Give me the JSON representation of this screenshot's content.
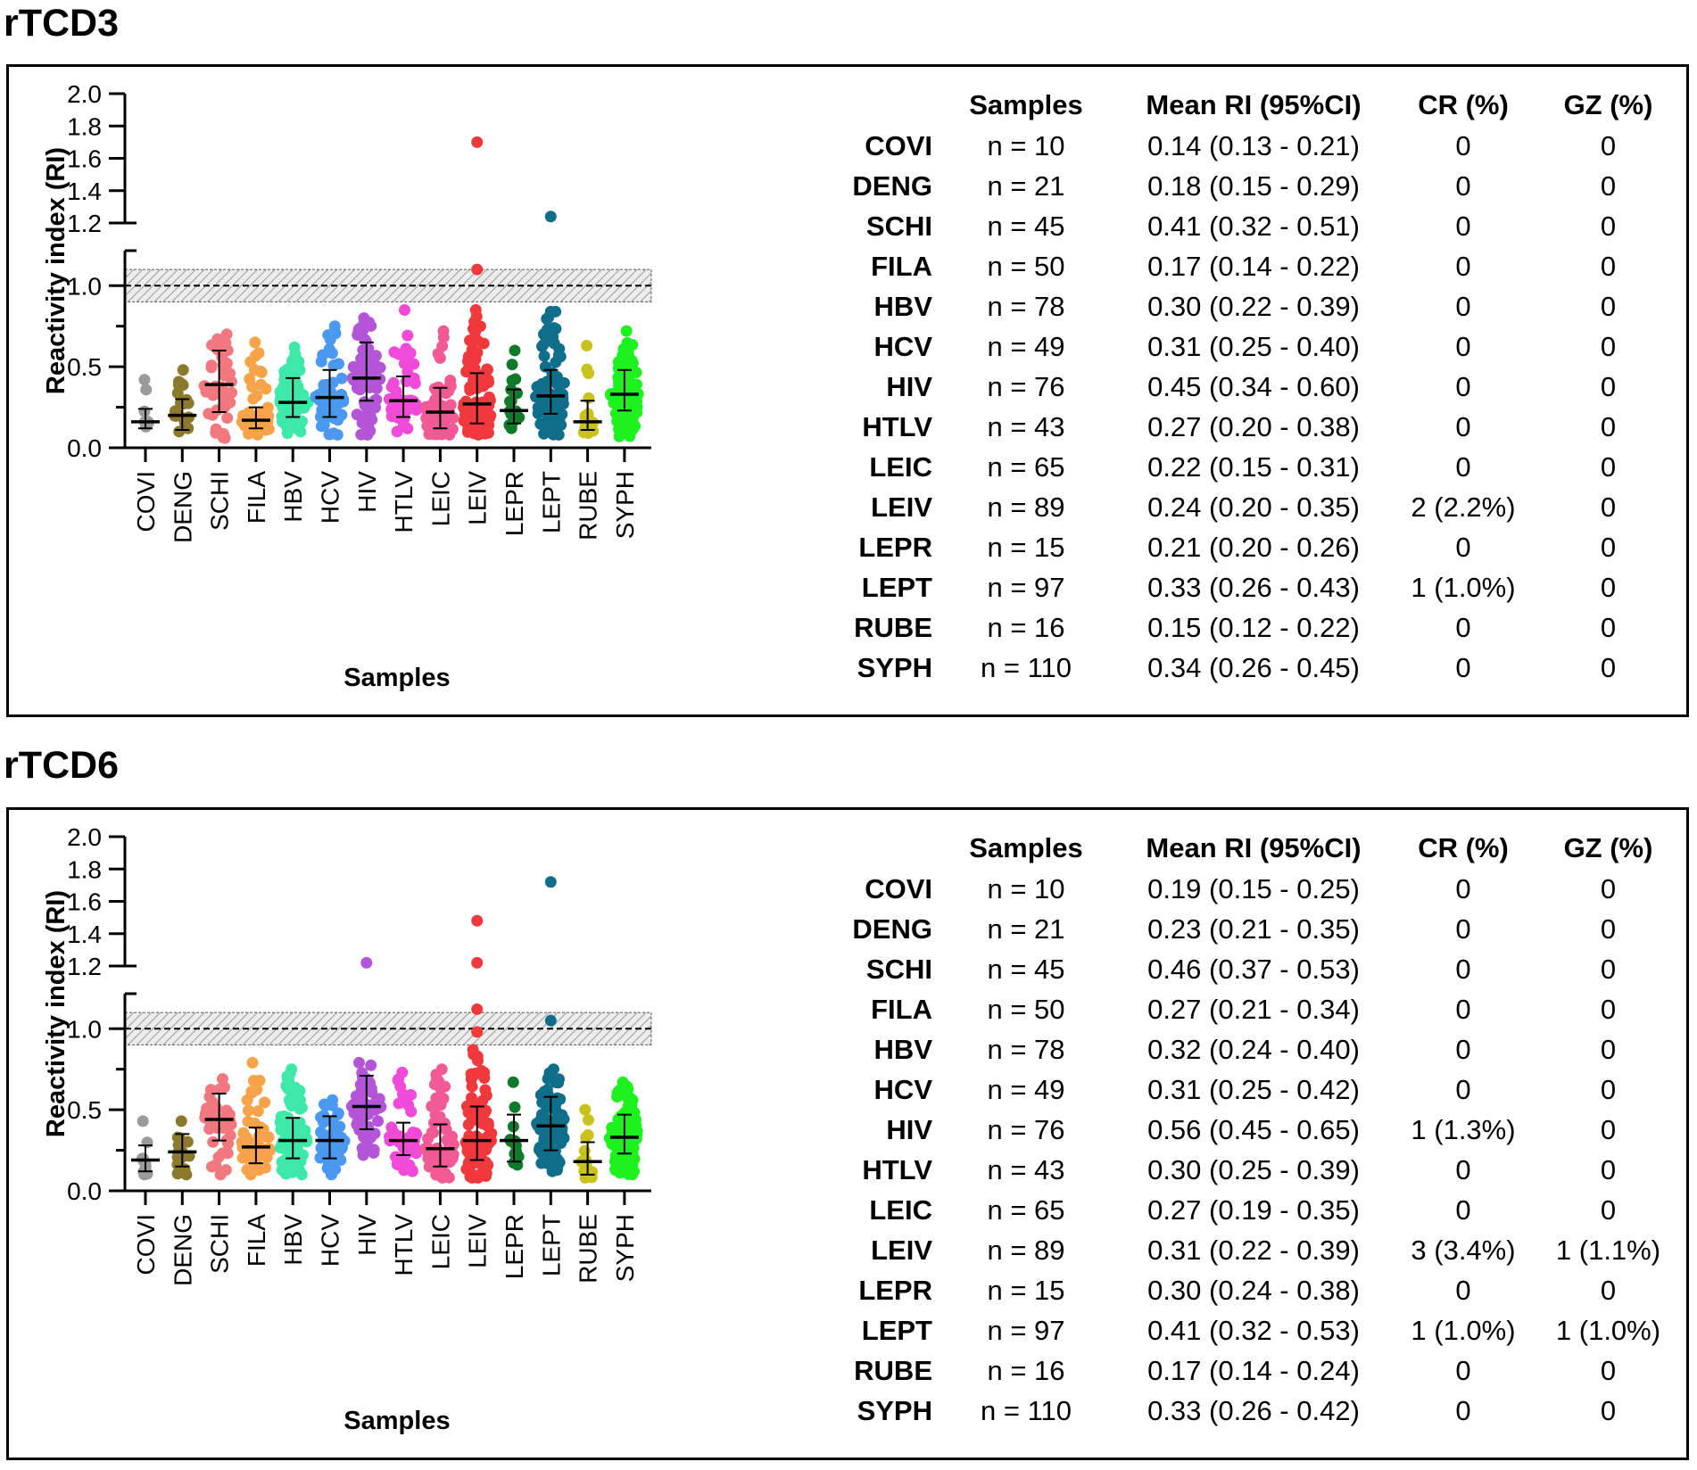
{
  "colors": [
    "#9a9a9a",
    "#8b7a2c",
    "#f2787f",
    "#f7a34a",
    "#3ee8a8",
    "#4a98f0",
    "#b455d8",
    "#f04ad8",
    "#f25a96",
    "#f0393d",
    "#0f7a2a",
    "#0f6f8a",
    "#c9c21c",
    "#1ef21e"
  ],
  "chart_data": [
    {
      "panel_title": "rTCD3",
      "type": "scatter",
      "ylabel": "Reactivity index (RI)",
      "xlabel": "Samples",
      "ylim_lower": [
        0,
        1.15
      ],
      "ylim_upper": [
        1.2,
        2.0
      ],
      "yticks_lower": [
        "0.0",
        "0.5",
        "1.0"
      ],
      "yticks_upper": [
        "1.2",
        "1.4",
        "1.6",
        "1.8",
        "2.0"
      ],
      "cutoff": 1.0,
      "grey_zone": [
        0.9,
        1.1
      ],
      "categories": [
        "COVI",
        "DENG",
        "SCHI",
        "FILA",
        "HBV",
        "HCV",
        "HIV",
        "HTLV",
        "LEIC",
        "LEIV",
        "LEPR",
        "LEPT",
        "RUBE",
        "SYPH"
      ],
      "n": [
        10,
        21,
        45,
        50,
        78,
        49,
        76,
        43,
        65,
        89,
        15,
        97,
        16,
        110
      ],
      "median": [
        0.16,
        0.2,
        0.39,
        0.17,
        0.28,
        0.31,
        0.43,
        0.29,
        0.22,
        0.27,
        0.23,
        0.32,
        0.16,
        0.33
      ],
      "whisker_low": [
        0.12,
        0.11,
        0.22,
        0.12,
        0.19,
        0.19,
        0.29,
        0.19,
        0.12,
        0.15,
        0.15,
        0.21,
        0.11,
        0.23
      ],
      "whisker_high": [
        0.24,
        0.3,
        0.6,
        0.25,
        0.43,
        0.48,
        0.65,
        0.44,
        0.37,
        0.46,
        0.36,
        0.48,
        0.29,
        0.48
      ],
      "min": [
        0.13,
        0.1,
        0.06,
        0.08,
        0.09,
        0.08,
        0.08,
        0.1,
        0.08,
        0.08,
        0.12,
        0.08,
        0.09,
        0.07
      ],
      "max": [
        0.42,
        0.48,
        0.7,
        0.65,
        0.62,
        0.75,
        0.8,
        0.85,
        0.72,
        0.85,
        0.6,
        0.84,
        0.63,
        0.72
      ],
      "outliers": [
        [],
        [],
        [],
        [],
        [],
        [],
        [],
        [],
        [],
        [
          1.1,
          1.7
        ],
        [],
        [
          0.84,
          1.24
        ],
        [],
        []
      ],
      "table": {
        "headers": [
          "",
          "Samples",
          "Mean RI (95%CI)",
          "CR (%)",
          "GZ (%)"
        ],
        "rows": [
          [
            "COVI",
            "n = 10",
            "0.14 (0.13 - 0.21)",
            "0",
            "0"
          ],
          [
            "DENG",
            "n = 21",
            "0.18 (0.15 - 0.29)",
            "0",
            "0"
          ],
          [
            "SCHI",
            "n = 45",
            "0.41 (0.32 - 0.51)",
            "0",
            "0"
          ],
          [
            "FILA",
            "n = 50",
            "0.17 (0.14 - 0.22)",
            "0",
            "0"
          ],
          [
            "HBV",
            "n = 78",
            "0.30 (0.22 - 0.39)",
            "0",
            "0"
          ],
          [
            "HCV",
            "n = 49",
            "0.31 (0.25 - 0.40)",
            "0",
            "0"
          ],
          [
            "HIV",
            "n = 76",
            "0.45 (0.34 - 0.60)",
            "0",
            "0"
          ],
          [
            "HTLV",
            "n = 43",
            "0.27 (0.20 - 0.38)",
            "0",
            "0"
          ],
          [
            "LEIC",
            "n = 65",
            "0.22 (0.15 - 0.31)",
            "0",
            "0"
          ],
          [
            "LEIV",
            "n = 89",
            "0.24 (0.20 - 0.35)",
            "2 (2.2%)",
            "0"
          ],
          [
            "LEPR",
            "n = 15",
            "0.21 (0.20 - 0.26)",
            "0",
            "0"
          ],
          [
            "LEPT",
            "n = 97",
            "0.33 (0.26 - 0.43)",
            "1 (1.0%)",
            "0"
          ],
          [
            "RUBE",
            "n = 16",
            "0.15 (0.12 - 0.22)",
            "0",
            "0"
          ],
          [
            "SYPH",
            "n = 110",
            "0.34 (0.26 - 0.45)",
            "0",
            "0"
          ]
        ]
      }
    },
    {
      "panel_title": "rTCD6",
      "type": "scatter",
      "ylabel": "Reactivity index (RI)",
      "xlabel": "Samples",
      "ylim_lower": [
        0,
        1.15
      ],
      "ylim_upper": [
        1.2,
        2.0
      ],
      "yticks_lower": [
        "0.0",
        "0.5",
        "1.0"
      ],
      "yticks_upper": [
        "1.2",
        "1.4",
        "1.6",
        "1.8",
        "2.0"
      ],
      "cutoff": 1.0,
      "grey_zone": [
        0.9,
        1.1
      ],
      "categories": [
        "COVI",
        "DENG",
        "SCHI",
        "FILA",
        "HBV",
        "HCV",
        "HIV",
        "HTLV",
        "LEIC",
        "LEIV",
        "LEPR",
        "LEPT",
        "RUBE",
        "SYPH"
      ],
      "n": [
        10,
        21,
        45,
        50,
        78,
        49,
        76,
        43,
        65,
        89,
        15,
        97,
        16,
        110
      ],
      "median": [
        0.19,
        0.24,
        0.44,
        0.27,
        0.31,
        0.31,
        0.52,
        0.31,
        0.26,
        0.31,
        0.31,
        0.4,
        0.18,
        0.33
      ],
      "whisker_low": [
        0.12,
        0.15,
        0.31,
        0.17,
        0.2,
        0.2,
        0.38,
        0.22,
        0.15,
        0.19,
        0.18,
        0.25,
        0.1,
        0.23
      ],
      "whisker_high": [
        0.28,
        0.35,
        0.6,
        0.39,
        0.45,
        0.46,
        0.71,
        0.42,
        0.41,
        0.52,
        0.47,
        0.58,
        0.3,
        0.47
      ],
      "min": [
        0.1,
        0.1,
        0.1,
        0.1,
        0.1,
        0.1,
        0.22,
        0.12,
        0.08,
        0.08,
        0.16,
        0.12,
        0.08,
        0.1
      ],
      "max": [
        0.43,
        0.43,
        0.69,
        0.79,
        0.75,
        0.56,
        0.79,
        0.73,
        0.75,
        0.87,
        0.67,
        0.75,
        0.5,
        0.67
      ],
      "outliers": [
        [],
        [],
        [],
        [],
        [],
        [],
        [
          1.22
        ],
        [],
        [],
        [
          0.98,
          1.12,
          1.22,
          1.48
        ],
        [],
        [
          1.05,
          1.72
        ],
        [],
        []
      ],
      "table": {
        "headers": [
          "",
          "Samples",
          "Mean RI (95%CI)",
          "CR (%)",
          "GZ (%)"
        ],
        "rows": [
          [
            "COVI",
            "n = 10",
            "0.19 (0.15 - 0.25)",
            "0",
            "0"
          ],
          [
            "DENG",
            "n = 21",
            "0.23 (0.21 - 0.35)",
            "0",
            "0"
          ],
          [
            "SCHI",
            "n = 45",
            "0.46 (0.37 - 0.53)",
            "0",
            "0"
          ],
          [
            "FILA",
            "n = 50",
            "0.27 (0.21 - 0.34)",
            "0",
            "0"
          ],
          [
            "HBV",
            "n = 78",
            "0.32 (0.24 - 0.40)",
            "0",
            "0"
          ],
          [
            "HCV",
            "n = 49",
            "0.31 (0.25 - 0.42)",
            "0",
            "0"
          ],
          [
            "HIV",
            "n = 76",
            "0.56 (0.45 - 0.65)",
            "1 (1.3%)",
            "0"
          ],
          [
            "HTLV",
            "n = 43",
            "0.30 (0.25 - 0.39)",
            "0",
            "0"
          ],
          [
            "LEIC",
            "n = 65",
            "0.27 (0.19 - 0.35)",
            "0",
            "0"
          ],
          [
            "LEIV",
            "n = 89",
            "0.31 (0.22 - 0.39)",
            "3 (3.4%)",
            "1 (1.1%)"
          ],
          [
            "LEPR",
            "n = 15",
            "0.30 (0.24 - 0.38)",
            "0",
            "0"
          ],
          [
            "LEPT",
            "n = 97",
            "0.41 (0.32 - 0.53)",
            "1 (1.0%)",
            "1 (1.0%)"
          ],
          [
            "RUBE",
            "n = 16",
            "0.17 (0.14 - 0.24)",
            "0",
            "0"
          ],
          [
            "SYPH",
            "n = 110",
            "0.33 (0.26 - 0.42)",
            "0",
            "0"
          ]
        ]
      }
    }
  ]
}
